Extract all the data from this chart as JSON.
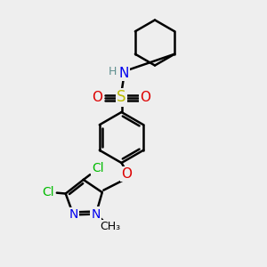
{
  "background_color": "#eeeeee",
  "atom_colors": {
    "C": "#000000",
    "H": "#5f8f8f",
    "N": "#0000ee",
    "O": "#dd0000",
    "S": "#bbbb00",
    "Cl": "#00bb00"
  },
  "bond_color": "#000000",
  "bond_width": 1.8,
  "font_size": 10,
  "fig_size": [
    3.0,
    3.0
  ],
  "dpi": 100,
  "xlim": [
    0,
    10
  ],
  "ylim": [
    0,
    10
  ]
}
